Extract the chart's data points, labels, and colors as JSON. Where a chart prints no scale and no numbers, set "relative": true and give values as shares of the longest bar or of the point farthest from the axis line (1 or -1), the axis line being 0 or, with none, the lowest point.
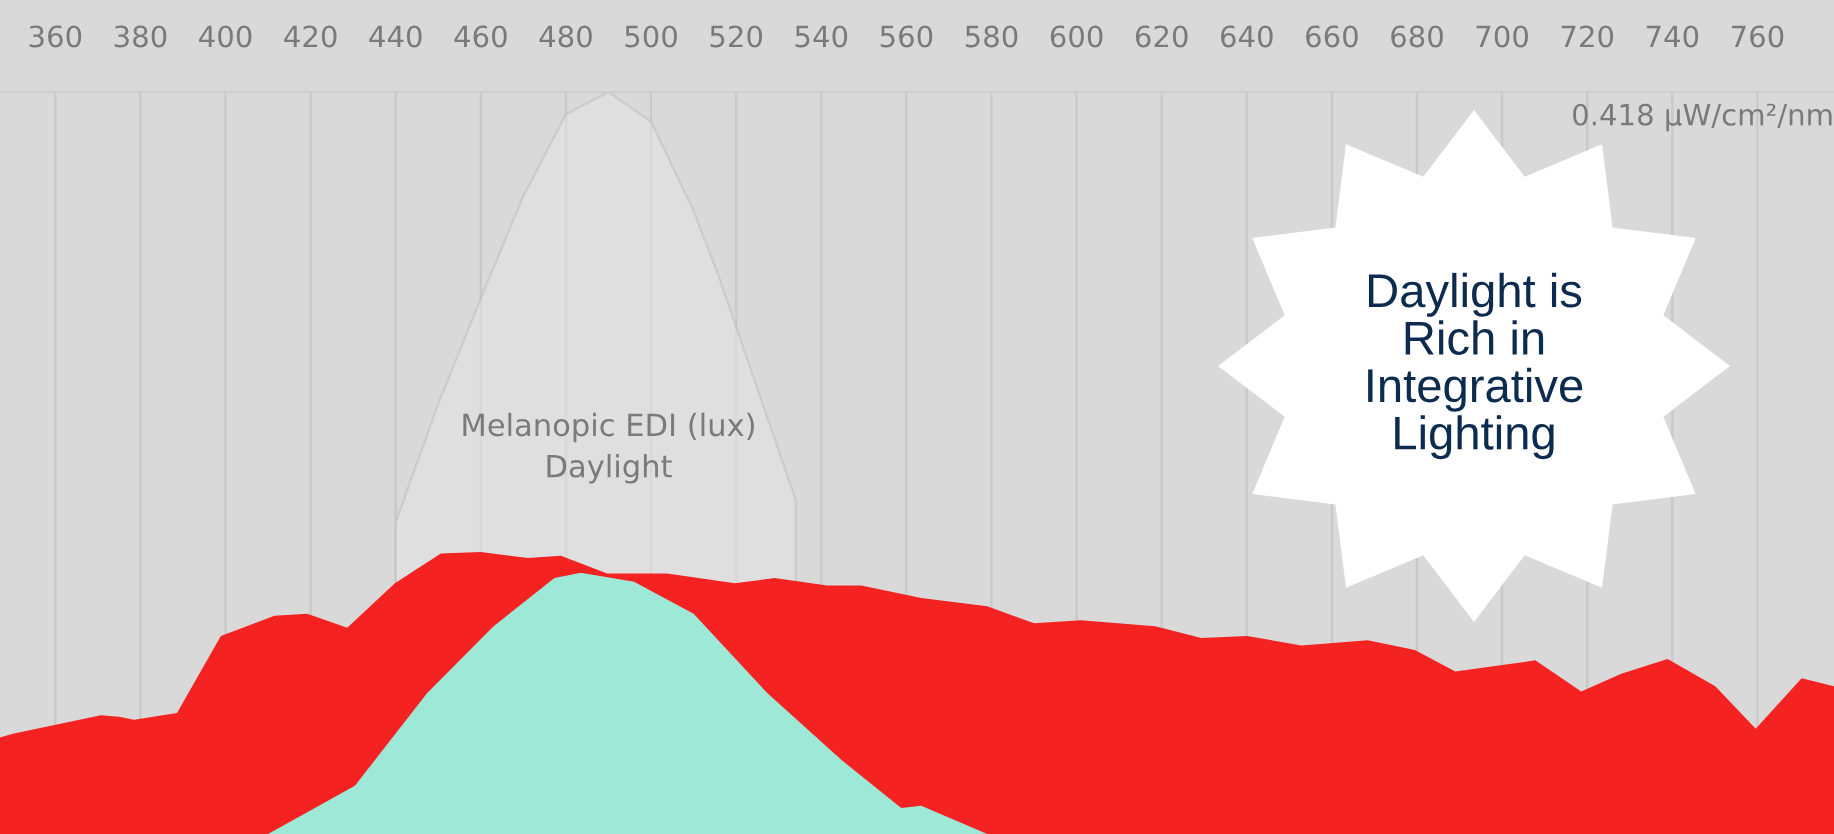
{
  "chart_data": {
    "type": "area",
    "relative": true,
    "xlim": [
      347,
      778
    ],
    "xticks": [
      360,
      380,
      400,
      420,
      440,
      460,
      480,
      500,
      520,
      540,
      560,
      580,
      600,
      620,
      640,
      660,
      680,
      700,
      720,
      740,
      760
    ],
    "grid": "x",
    "annotations": [
      "0.418 µW/cm²/nm",
      "Daylight is\nRich in\nIntegrative\nLighting"
    ],
    "series": [
      {
        "name": "Melanopic EDI (lux)\nDaylight",
        "color": "#e4e4e4",
        "x": [
          440,
          450,
          462,
          470,
          480,
          490,
          500,
          510,
          516,
          525,
          534
        ],
        "values": [
          0.42,
          0.58,
          0.75,
          0.86,
          0.97,
          1.0,
          0.96,
          0.84,
          0.75,
          0.6,
          0.45
        ]
      },
      {
        "color": "#f52222",
        "x": [
          347,
          350,
          370.7,
          375,
          378.5,
          388.6,
          398.9,
          411.5,
          419.2,
          428.6,
          439.8,
          450.6,
          460,
          471,
          478.8,
          489.7,
          503.8,
          519.7,
          529,
          541.4,
          549.4,
          563.5,
          579,
          590,
          601,
          618.5,
          629.3,
          640.1,
          652.8,
          668.4,
          679.5,
          689,
          707.8,
          718.6,
          728,
          738.9,
          750.1,
          759.6,
          770.4,
          778
        ],
        "values": [
          0.13,
          0.135,
          0.16,
          0.158,
          0.154,
          0.163,
          0.267,
          0.294,
          0.297,
          0.278,
          0.338,
          0.378,
          0.38,
          0.372,
          0.375,
          0.351,
          0.351,
          0.338,
          0.345,
          0.335,
          0.335,
          0.318,
          0.307,
          0.284,
          0.288,
          0.28,
          0.264,
          0.267,
          0.254,
          0.261,
          0.248,
          0.219,
          0.234,
          0.192,
          0.216,
          0.236,
          0.199,
          0.142,
          0.21,
          0.199
        ]
      },
      {
        "color": "#9ee8d8",
        "x": [
          410,
          430.4,
          447.4,
          463,
          477.3,
          483.5,
          496,
          510,
          527.3,
          544.7,
          558.8,
          563.5,
          579
        ],
        "values": [
          0,
          0.065,
          0.19,
          0.28,
          0.345,
          0.352,
          0.34,
          0.297,
          0.19,
          0.1,
          0.035,
          0.038,
          0
        ]
      }
    ]
  }
}
